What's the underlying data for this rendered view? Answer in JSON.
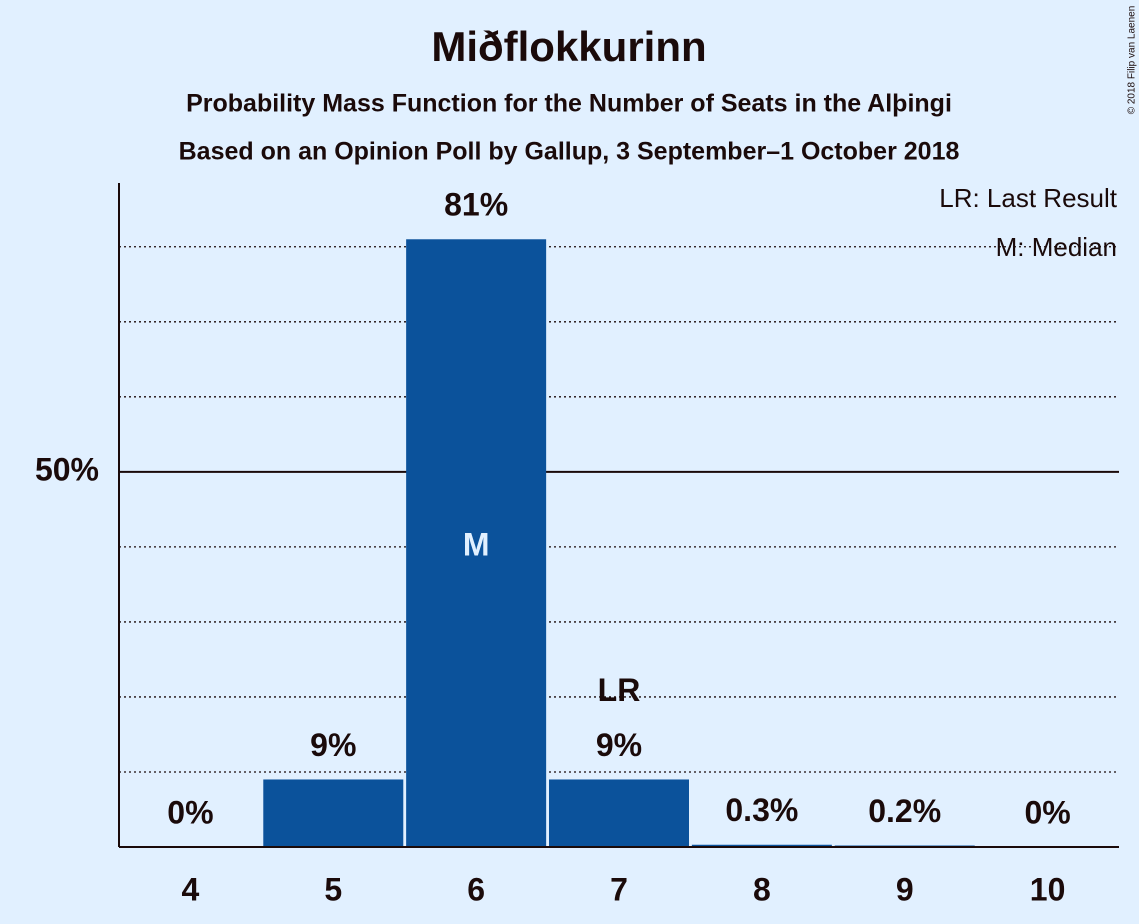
{
  "chart_data": {
    "type": "bar",
    "title": "Miðflokkurinn",
    "subtitle": "Probability Mass Function for the Number of Seats in the Alþingi",
    "subtitle2": "Based on an Opinion Poll by Gallup, 3 September–1 October 2018",
    "categories": [
      "4",
      "5",
      "6",
      "7",
      "8",
      "9",
      "10"
    ],
    "values": [
      0,
      9,
      81,
      9,
      0.3,
      0.2,
      0
    ],
    "value_labels": [
      "0%",
      "9%",
      "81%",
      "9%",
      "0.3%",
      "0.2%",
      "0%"
    ],
    "color": "#0b529b",
    "ylim": [
      0,
      88.5
    ],
    "yticks": [
      {
        "value": 50,
        "label": "50%"
      }
    ],
    "minor_gridlines": [
      10,
      20,
      30,
      40,
      60,
      70,
      80
    ],
    "bar_annotations": [
      {
        "category": 2,
        "text": "M"
      },
      {
        "category": 3,
        "text": "LR"
      }
    ],
    "legend": [
      "LR: Last Result",
      "M: Median"
    ],
    "copyright": "© 2018 Filip van Laenen"
  }
}
